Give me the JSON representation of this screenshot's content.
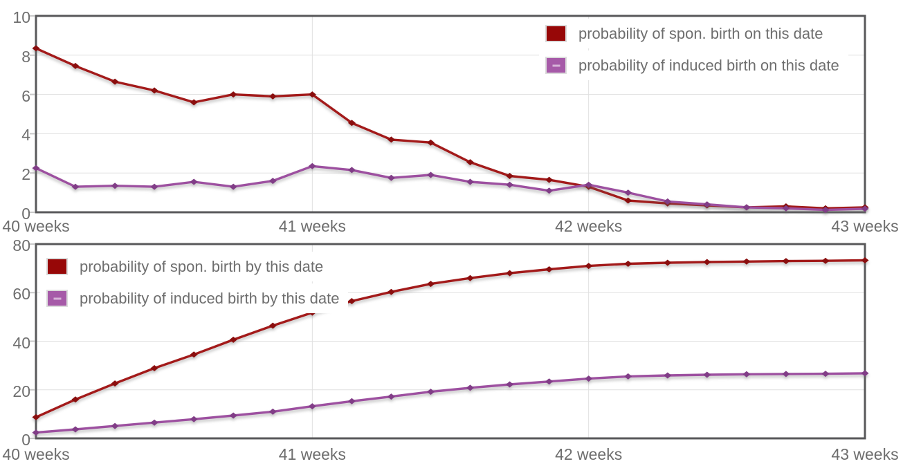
{
  "chart_data": [
    {
      "type": "line",
      "title": "",
      "x": [
        0,
        1,
        2,
        3,
        4,
        5,
        6,
        7,
        8,
        9,
        10,
        11,
        12,
        13,
        14,
        15,
        16,
        17,
        18,
        19,
        20,
        21
      ],
      "x_unit": "days from 40 weeks gestation",
      "x_tick_days": [
        0,
        7,
        14,
        21
      ],
      "x_tick_labels": [
        "40 weeks",
        "41 weeks",
        "42 weeks",
        "43 weeks"
      ],
      "ylim": [
        0,
        10
      ],
      "y_ticks": [
        0,
        2,
        4,
        6,
        8,
        10
      ],
      "y_tick_labels": [
        "0",
        "2",
        "4",
        "6",
        "8",
        "10"
      ],
      "grid": true,
      "legend_position": "top-right",
      "series": [
        {
          "name": "probability of spon. birth on this date",
          "color": "#A31A1A",
          "marker_color": "#8A0E0E",
          "swatch_color": "#970707",
          "values": [
            8.35,
            7.45,
            6.65,
            6.2,
            5.6,
            6.0,
            5.9,
            6.0,
            4.55,
            3.7,
            3.55,
            2.55,
            1.85,
            1.65,
            1.3,
            0.6,
            0.45,
            0.35,
            0.25,
            0.3,
            0.2,
            0.25
          ]
        },
        {
          "name": "probability of induced birth on this date",
          "color": "#9D50A0",
          "marker_color": "#813D87",
          "swatch_color": "#A65AA8",
          "values": [
            2.25,
            1.3,
            1.35,
            1.3,
            1.55,
            1.3,
            1.6,
            2.35,
            2.15,
            1.75,
            1.9,
            1.55,
            1.4,
            1.1,
            1.4,
            1.0,
            0.55,
            0.4,
            0.25,
            0.2,
            0.12,
            0.18
          ]
        }
      ]
    },
    {
      "type": "line",
      "title": "",
      "x": [
        0,
        1,
        2,
        3,
        4,
        5,
        6,
        7,
        8,
        9,
        10,
        11,
        12,
        13,
        14,
        15,
        16,
        17,
        18,
        19,
        20,
        21
      ],
      "x_unit": "days from 40 weeks gestation",
      "x_tick_days": [
        0,
        7,
        14,
        21
      ],
      "x_tick_labels": [
        "40 weeks",
        "41 weeks",
        "42 weeks",
        "43 weeks"
      ],
      "ylim": [
        0,
        80
      ],
      "y_ticks": [
        0,
        20,
        40,
        60,
        80
      ],
      "y_tick_labels": [
        "0",
        "20",
        "40",
        "60",
        "80"
      ],
      "grid": true,
      "legend_position": "top-left",
      "series": [
        {
          "name": "probability of spon. birth by this date",
          "color": "#A31A1A",
          "marker_color": "#8A0E0E",
          "swatch_color": "#970707",
          "values": [
            8.7,
            16.0,
            22.6,
            28.9,
            34.5,
            40.6,
            46.4,
            51.8,
            56.5,
            60.3,
            63.6,
            66.0,
            68.0,
            69.6,
            71.0,
            71.9,
            72.3,
            72.6,
            72.8,
            73.0,
            73.1,
            73.3
          ]
        },
        {
          "name": "probability of induced birth by this date",
          "color": "#9D50A0",
          "marker_color": "#813D87",
          "swatch_color": "#A65AA8",
          "values": [
            2.4,
            3.7,
            5.1,
            6.5,
            7.9,
            9.4,
            11.0,
            13.2,
            15.3,
            17.2,
            19.2,
            20.8,
            22.2,
            23.4,
            24.6,
            25.5,
            25.9,
            26.2,
            26.4,
            26.5,
            26.6,
            26.8
          ]
        }
      ]
    }
  ],
  "style": {
    "axis_text_color": "#6e6e6e",
    "gridline_color": "#e0e0e0",
    "frame_color": "#58585a",
    "background": "#ffffff"
  }
}
